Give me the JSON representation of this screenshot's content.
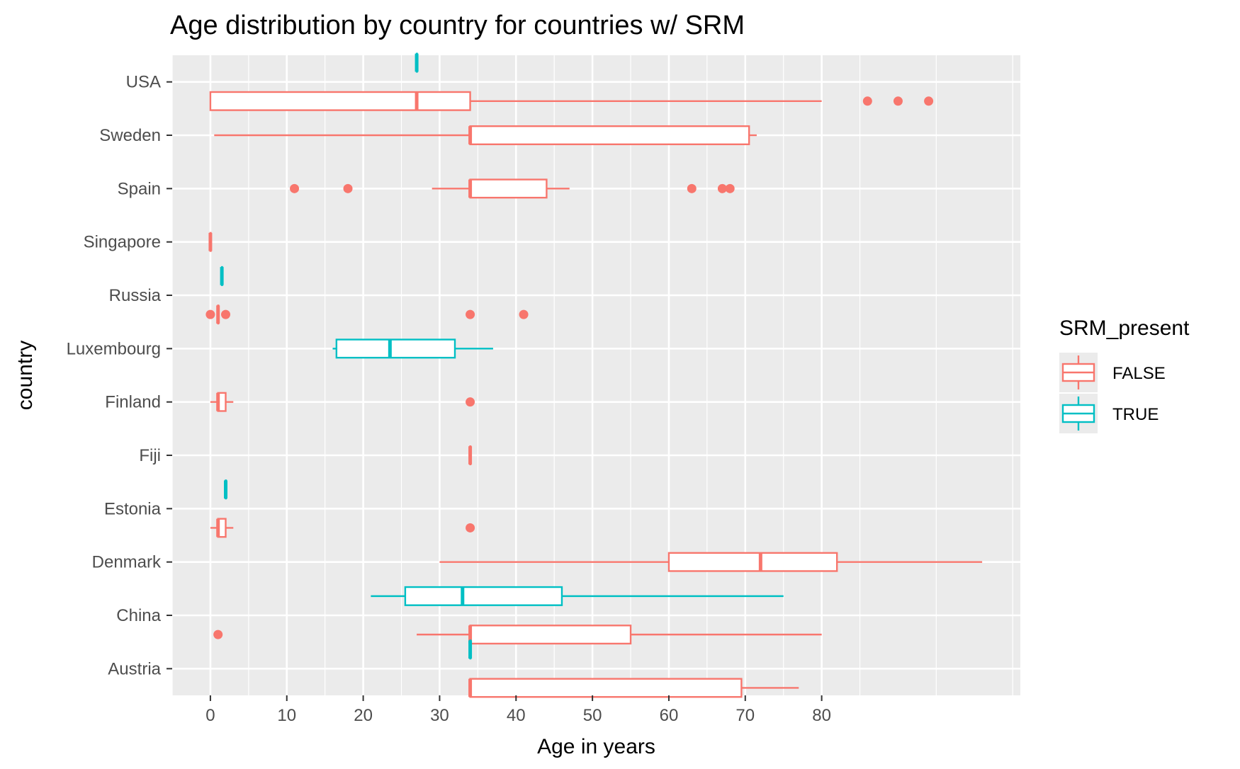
{
  "chart_data": {
    "type": "boxplot",
    "orientation": "horizontal",
    "title": "Age distribution by country for countries w/ SRM",
    "xlabel": "Age in years",
    "ylabel": "country",
    "xlim": [
      -5,
      106
    ],
    "x_ticks": [
      0,
      10,
      20,
      30,
      40,
      50,
      60,
      70,
      80
    ],
    "categories": [
      "USA",
      "Sweden",
      "Spain",
      "Singapore",
      "Russia",
      "Luxembourg",
      "Finland",
      "Fiji",
      "Estonia",
      "Denmark",
      "China",
      "Austria"
    ],
    "grid": true,
    "legend": {
      "title": "SRM_present",
      "position": "right",
      "entries": [
        {
          "label": "FALSE",
          "color": "#F8766D"
        },
        {
          "label": "TRUE",
          "color": "#00BFC4"
        }
      ]
    },
    "colors": {
      "FALSE": "#F8766D",
      "TRUE": "#00BFC4",
      "panel": "#EBEBEB",
      "grid": "#FFFFFF"
    },
    "series": [
      {
        "name": "FALSE",
        "boxes": [
          {
            "country": "USA",
            "min": 0,
            "q1": 0,
            "median": 27,
            "q3": 34,
            "max": 80,
            "outliers": [
              86,
              90,
              94
            ]
          },
          {
            "country": "Sweden",
            "min": 0.5,
            "q1": 34,
            "median": 34,
            "q3": 70.5,
            "max": 71.5,
            "outliers": []
          },
          {
            "country": "Spain",
            "min": 29,
            "q1": 34,
            "median": 34,
            "q3": 44,
            "max": 47,
            "outliers": [
              11,
              18,
              63,
              67,
              68
            ]
          },
          {
            "country": "Singapore",
            "min": 0,
            "q1": 0,
            "median": 0,
            "q3": 0,
            "max": 0,
            "outliers": []
          },
          {
            "country": "Russia",
            "min": 1,
            "q1": 1,
            "median": 1,
            "q3": 1,
            "max": 1,
            "outliers": [
              0,
              2,
              34,
              41
            ]
          },
          {
            "country": "Finland",
            "min": 0,
            "q1": 1,
            "median": 1,
            "q3": 2,
            "max": 3,
            "outliers": [
              34
            ]
          },
          {
            "country": "Fiji",
            "min": 34,
            "q1": 34,
            "median": 34,
            "q3": 34,
            "max": 34,
            "outliers": []
          },
          {
            "country": "Estonia",
            "min": 0,
            "q1": 1,
            "median": 1,
            "q3": 2,
            "max": 3,
            "outliers": [
              34
            ]
          },
          {
            "country": "Denmark",
            "min": 30,
            "q1": 60,
            "median": 72,
            "q3": 82,
            "max": 101,
            "outliers": []
          },
          {
            "country": "China",
            "min": 27,
            "q1": 34,
            "median": 34,
            "q3": 55,
            "max": 80,
            "outliers": [
              1
            ]
          },
          {
            "country": "Austria",
            "min": 34,
            "q1": 34,
            "median": 34,
            "q3": 69.5,
            "max": 77,
            "outliers": []
          }
        ]
      },
      {
        "name": "TRUE",
        "boxes": [
          {
            "country": "USA",
            "min": 27,
            "q1": 27,
            "median": 27,
            "q3": 27,
            "max": 27,
            "outliers": []
          },
          {
            "country": "Russia",
            "min": 1.5,
            "q1": 1.5,
            "median": 1.5,
            "q3": 1.5,
            "max": 1.5,
            "outliers": []
          },
          {
            "country": "Luxembourg",
            "min": 16,
            "q1": 16.5,
            "median": 23.5,
            "q3": 32,
            "max": 37,
            "outliers": []
          },
          {
            "country": "Estonia",
            "min": 2,
            "q1": 2,
            "median": 2,
            "q3": 2,
            "max": 2,
            "outliers": []
          },
          {
            "country": "China",
            "min": 21,
            "q1": 25.5,
            "median": 33,
            "q3": 46,
            "max": 75,
            "outliers": []
          },
          {
            "country": "Austria",
            "min": 34,
            "q1": 34,
            "median": 34,
            "q3": 34,
            "max": 34,
            "outliers": []
          }
        ]
      }
    ]
  }
}
